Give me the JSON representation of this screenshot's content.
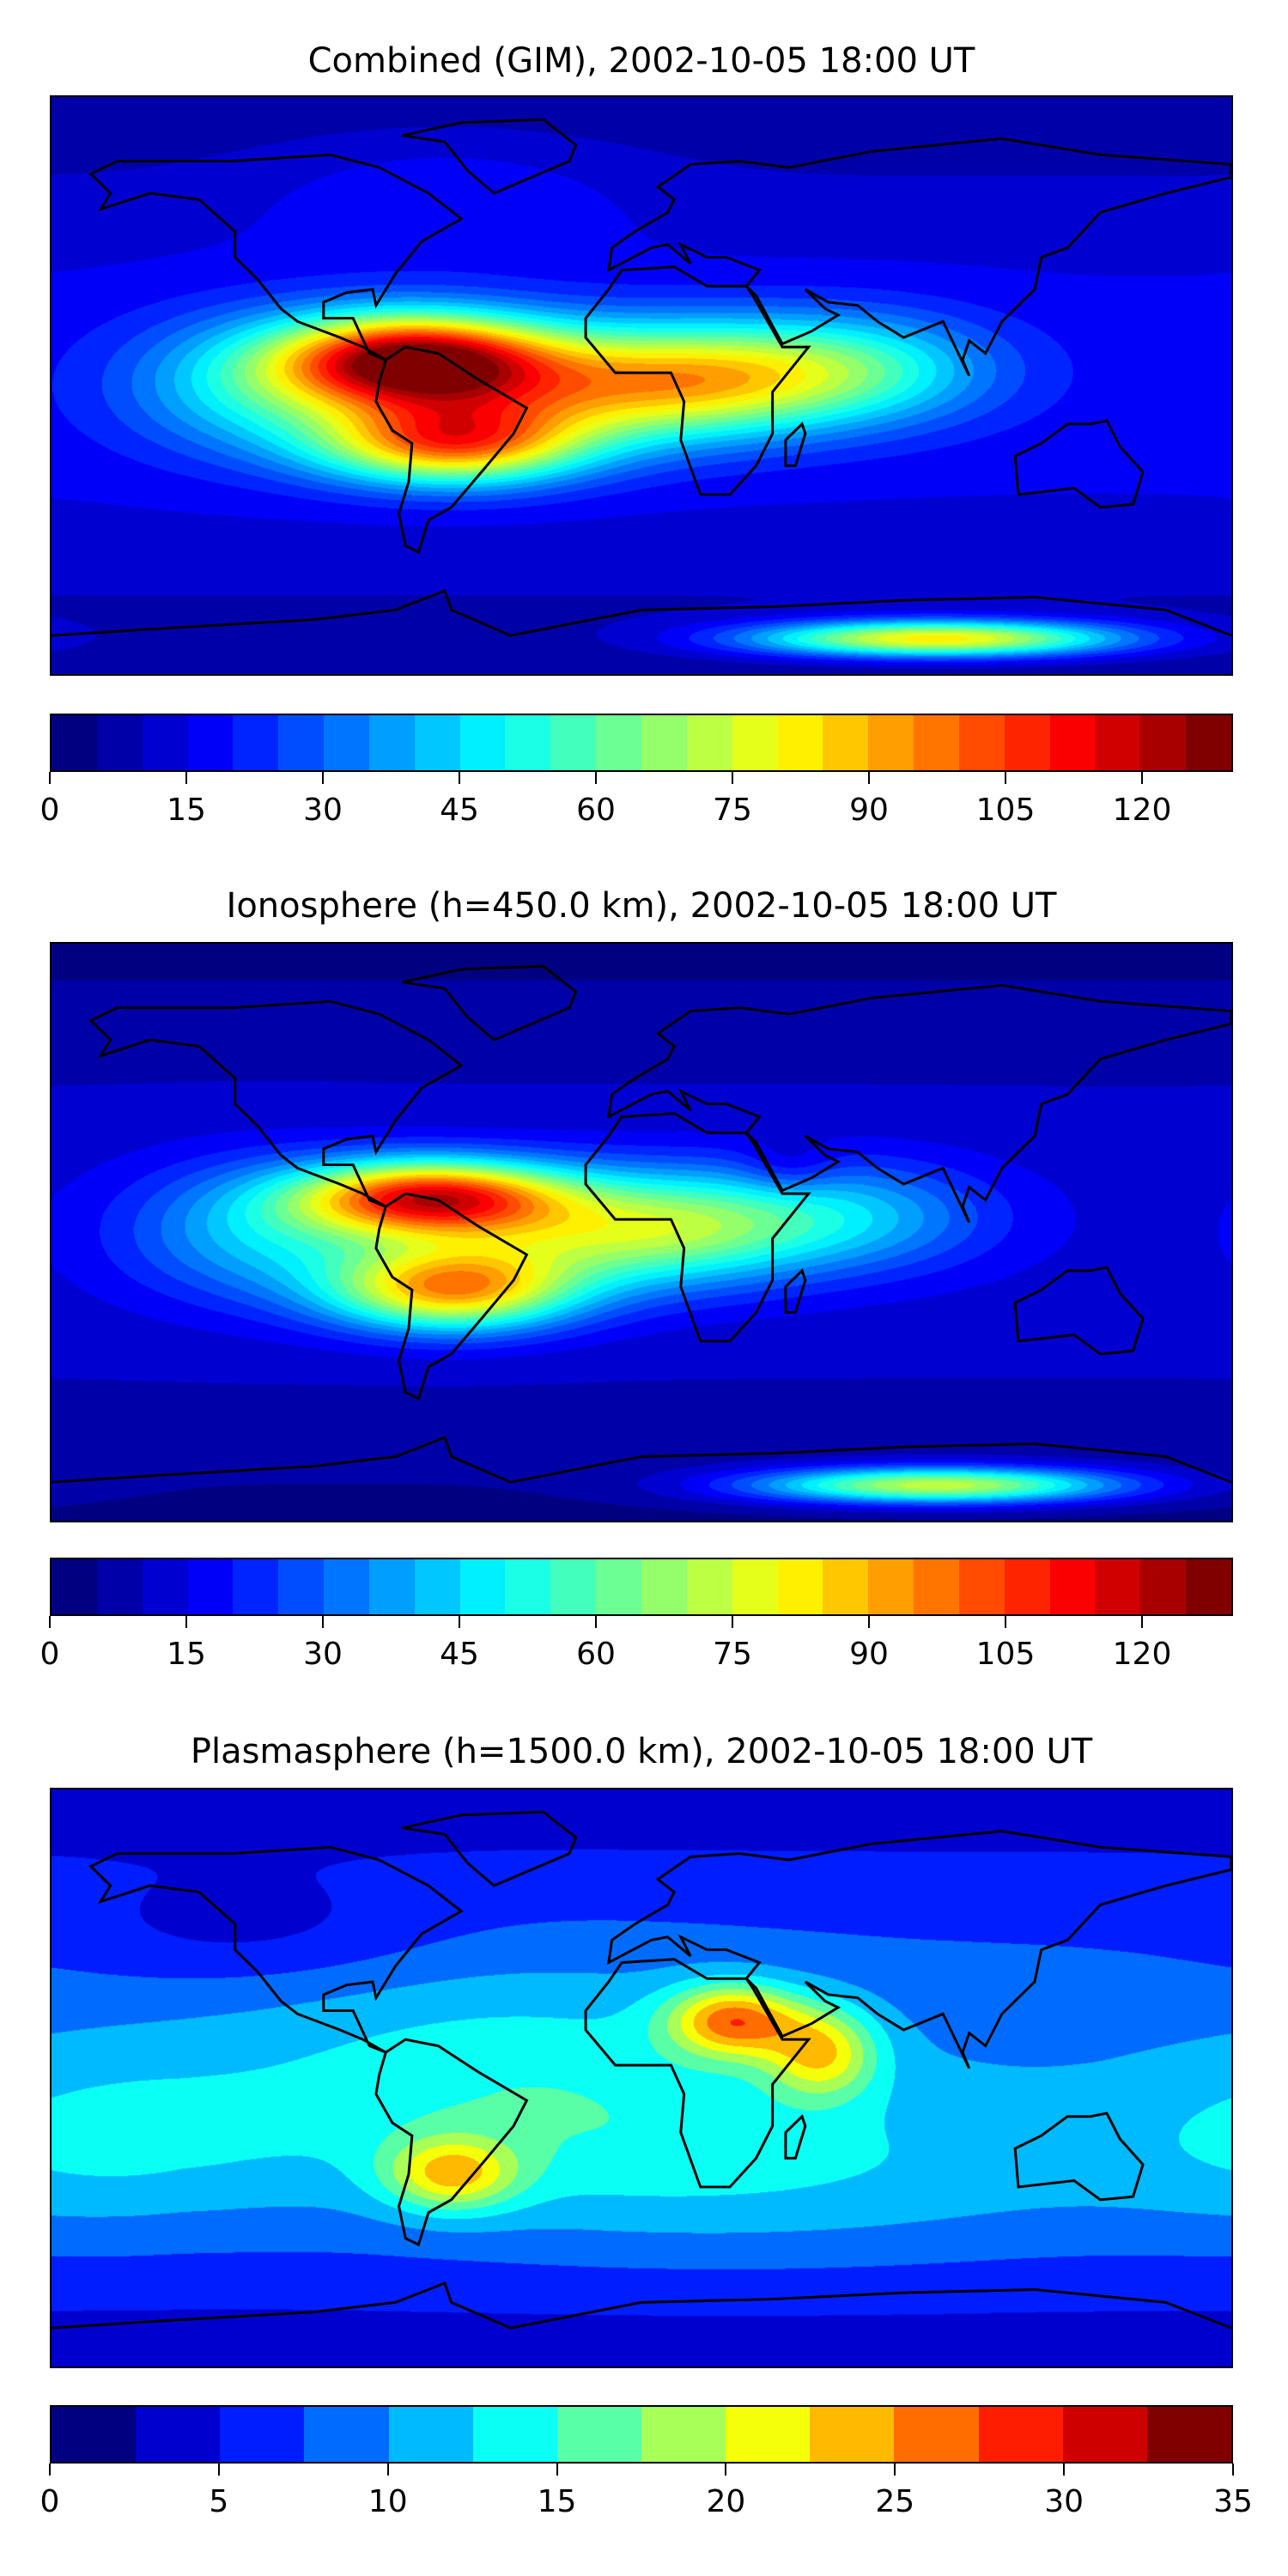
{
  "chart_data": [
    {
      "type": "heatmap",
      "title": "Combined (GIM), 2002-10-05 18:00 UT",
      "projection": "equirectangular world map with coastlines",
      "colormap": "jet",
      "levels": {
        "min": 0,
        "max": 130,
        "step": 5
      },
      "colorbar_ticks": [
        "0",
        "15",
        "30",
        "45",
        "60",
        "75",
        "90",
        "105",
        "120"
      ],
      "colorbar_tick_values": [
        0,
        15,
        30,
        45,
        60,
        75,
        90,
        105,
        120
      ],
      "features": [
        {
          "desc": "equatorial anomaly peak, northern South America",
          "lon": -70,
          "lat": 8,
          "value": 125
        },
        {
          "desc": "southern crest, South America",
          "lon": -58,
          "lat": -18,
          "value": 100
        },
        {
          "desc": "Atlantic / Africa band",
          "lon": 0,
          "lat": 0,
          "value": 70
        },
        {
          "desc": "Indian Ocean band",
          "lon": 60,
          "lat": 5,
          "value": 55
        },
        {
          "desc": "Antarctic coast enhancement",
          "lon": 90,
          "lat": -78,
          "value": 80
        }
      ]
    },
    {
      "type": "heatmap",
      "title": "Ionosphere  (h=450.0 km), 2002-10-05 18:00 UT",
      "projection": "equirectangular world map with coastlines",
      "colormap": "jet",
      "levels": {
        "min": 0,
        "max": 130,
        "step": 5
      },
      "colorbar_ticks": [
        "0",
        "15",
        "30",
        "45",
        "60",
        "75",
        "90",
        "105",
        "120"
      ],
      "colorbar_tick_values": [
        0,
        15,
        30,
        45,
        60,
        75,
        90,
        105,
        120
      ],
      "features": [
        {
          "desc": "equatorial anomaly peak, northern South America",
          "lon": -65,
          "lat": 10,
          "value": 110
        },
        {
          "desc": "southern crest, South America",
          "lon": -58,
          "lat": -18,
          "value": 95
        },
        {
          "desc": "Atlantic / Africa band",
          "lon": 0,
          "lat": 0,
          "value": 55
        },
        {
          "desc": "Antarctic coast enhancement",
          "lon": 90,
          "lat": -78,
          "value": 70
        }
      ]
    },
    {
      "type": "heatmap",
      "title": "Plasmasphere (h=1500.0 km), 2002-10-05 18:00 UT",
      "projection": "equirectangular world map with coastlines",
      "colormap": "jet",
      "levels": {
        "min": 0,
        "max": 35,
        "step": 2.5
      },
      "colorbar_ticks": [
        "0",
        "5",
        "10",
        "15",
        "20",
        "25",
        "30",
        "35"
      ],
      "colorbar_tick_values": [
        0,
        5,
        10,
        15,
        20,
        25,
        30,
        35
      ],
      "features": [
        {
          "desc": "peak over north-east Africa",
          "lon": 28,
          "lat": 18,
          "value": 27
        },
        {
          "desc": "peak over Arabian Sea",
          "lon": 55,
          "lat": 8,
          "value": 22
        },
        {
          "desc": "peak over southern South America",
          "lon": -58,
          "lat": -30,
          "value": 22
        }
      ]
    }
  ]
}
